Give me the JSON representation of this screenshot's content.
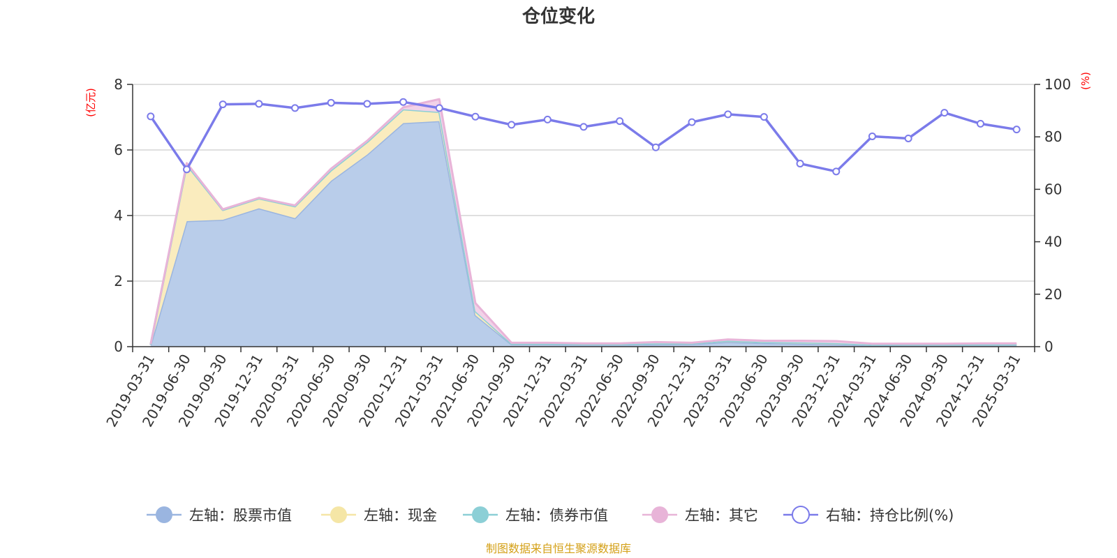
{
  "chart_data": {
    "type": "area",
    "title": "仓位变化",
    "left_axis": {
      "unit_label": "(亿元)",
      "ylim": [
        0,
        8
      ],
      "ticks": [
        "0",
        "2",
        "4",
        "6",
        "8"
      ]
    },
    "right_axis": {
      "unit_label": "(%)",
      "ylim": [
        0,
        100
      ],
      "ticks": [
        "0",
        "20",
        "40",
        "60",
        "80",
        "100"
      ]
    },
    "grid": true,
    "legend_position": "bottom",
    "categories": [
      "2019-03-31",
      "2019-06-30",
      "2019-09-30",
      "2019-12-31",
      "2020-03-31",
      "2020-06-30",
      "2020-09-30",
      "2020-12-31",
      "2021-03-31",
      "2021-06-30",
      "2021-09-30",
      "2021-12-31",
      "2022-03-31",
      "2022-06-30",
      "2022-09-30",
      "2022-12-31",
      "2023-03-31",
      "2023-06-30",
      "2023-09-30",
      "2023-12-31",
      "2024-03-31",
      "2024-06-30",
      "2024-09-30",
      "2024-12-31",
      "2025-03-31"
    ],
    "series": [
      {
        "name": "左轴：股票市值",
        "axis": "left",
        "kind": "stacked-area",
        "color": "#9ab5e0",
        "fill": "#b9cdea",
        "marker": "filled",
        "values": [
          0.05,
          3.83,
          3.87,
          4.22,
          3.92,
          5.06,
          5.86,
          6.82,
          6.88,
          0.96,
          0.07,
          0.07,
          0.06,
          0.06,
          0.07,
          0.08,
          0.14,
          0.11,
          0.09,
          0.07,
          0.04,
          0.05,
          0.05,
          0.05,
          0.05
        ]
      },
      {
        "name": "左轴：现金",
        "axis": "left",
        "kind": "stacked-area",
        "color": "#f5e6a6",
        "fill": "#faecbe",
        "marker": "filled",
        "values": [
          0.02,
          1.72,
          0.3,
          0.3,
          0.36,
          0.32,
          0.38,
          0.42,
          0.28,
          0.12,
          0.02,
          0.02,
          0.02,
          0.02,
          0.03,
          0.02,
          0.04,
          0.03,
          0.04,
          0.04,
          0.02,
          0.02,
          0.02,
          0.02,
          0.02
        ]
      },
      {
        "name": "左轴：债券市值",
        "axis": "left",
        "kind": "stacked-area",
        "color": "#8ccfd6",
        "fill": "#bfe6ea",
        "marker": "filled",
        "values": [
          0,
          0,
          0,
          0,
          0,
          0,
          0,
          0,
          0,
          0,
          0,
          0,
          0,
          0,
          0,
          0,
          0,
          0,
          0,
          0,
          0,
          0,
          0,
          0,
          0
        ]
      },
      {
        "name": "左轴：其它",
        "axis": "left",
        "kind": "stacked-area",
        "color": "#e8b4d8",
        "fill": "#f2d2e8",
        "marker": "filled",
        "values": [
          0.01,
          0.05,
          0.02,
          0.02,
          0.03,
          0.05,
          0.04,
          0.06,
          0.39,
          0.25,
          0.03,
          0.03,
          0.02,
          0.02,
          0.04,
          0.02,
          0.04,
          0.04,
          0.05,
          0.06,
          0.03,
          0.02,
          0.02,
          0.03,
          0.03
        ]
      },
      {
        "name": "右轴：持仓比例(%)",
        "axis": "right",
        "kind": "line",
        "color": "#7b7bea",
        "marker": "hollow",
        "values": [
          87.8,
          67.6,
          92.4,
          92.6,
          91.0,
          93.0,
          92.6,
          93.3,
          91.0,
          87.7,
          84.6,
          86.6,
          83.8,
          86.0,
          76.0,
          85.6,
          88.6,
          87.6,
          69.8,
          66.8,
          80.2,
          79.4,
          89.2,
          85.0,
          82.8
        ]
      }
    ]
  },
  "source_text": "制图数据来自恒生聚源数据库",
  "colors": {
    "axis_unit": "#ff0000",
    "source": "#d4a017",
    "grid": "#cccccc"
  }
}
